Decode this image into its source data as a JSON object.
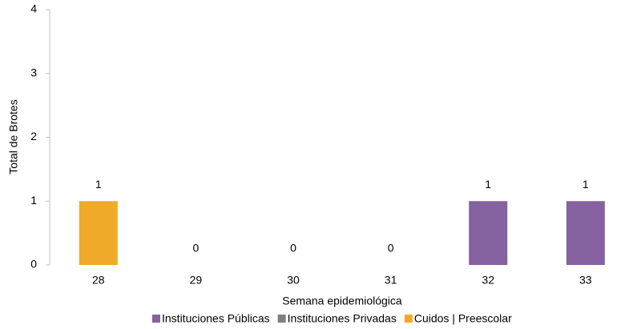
{
  "chart_data": {
    "type": "stacked_bar",
    "categories": [
      "28",
      "29",
      "30",
      "31",
      "32",
      "33"
    ],
    "series": [
      {
        "name": "Instituciones Públicas",
        "color": "#8561a0",
        "values": [
          0,
          0,
          0,
          0,
          1,
          1
        ]
      },
      {
        "name": "Instituciones Privadas",
        "color": "#7f7f7f",
        "values": [
          0,
          0,
          0,
          0,
          0,
          0
        ]
      },
      {
        "name": "Cuidos | Preescolar",
        "color": "#f0a928",
        "values": [
          1,
          0,
          0,
          0,
          0,
          0
        ]
      }
    ],
    "total_labels": [
      "1",
      "0",
      "0",
      "0",
      "1",
      "1"
    ],
    "xlabel": "Semana epidemiológica",
    "ylabel": "Total de Brotes",
    "ylim": [
      0,
      4
    ],
    "yticks": [
      0,
      1,
      2,
      3,
      4
    ],
    "legend": "bottom"
  }
}
